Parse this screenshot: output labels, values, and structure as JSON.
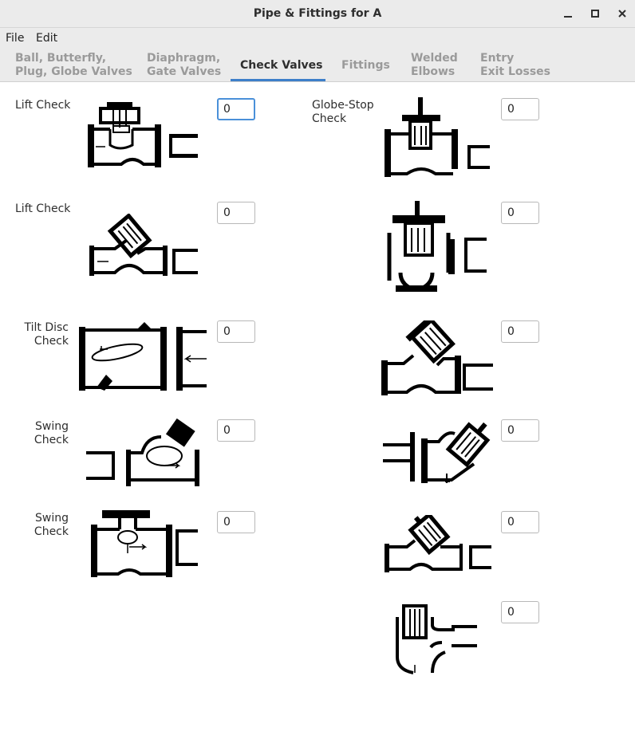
{
  "window": {
    "title": "Pipe & Fittings for A"
  },
  "menu": {
    "file": "File",
    "edit": "Edit"
  },
  "tabs": [
    {
      "label": "Ball, Butterfly,\nPlug, Globe Valves"
    },
    {
      "label": "Diaphragm,\nGate Valves"
    },
    {
      "label": "Check Valves"
    },
    {
      "label": "Fittings"
    },
    {
      "label": "Welded\nElbows"
    },
    {
      "label": "Entry\nExit Losses"
    }
  ],
  "left": [
    {
      "label": "Lift Check",
      "value": "0"
    },
    {
      "label": "Lift Check",
      "value": "0"
    },
    {
      "label": "Tilt Disc\nCheck",
      "value": "0"
    },
    {
      "label": "Swing\nCheck",
      "value": "0"
    },
    {
      "label": "Swing\nCheck",
      "value": "0"
    }
  ],
  "right": [
    {
      "label": "Globe-Stop\nCheck",
      "value": "0"
    },
    {
      "value": "0"
    },
    {
      "value": "0"
    },
    {
      "value": "0"
    },
    {
      "value": "0"
    },
    {
      "value": "0"
    }
  ]
}
